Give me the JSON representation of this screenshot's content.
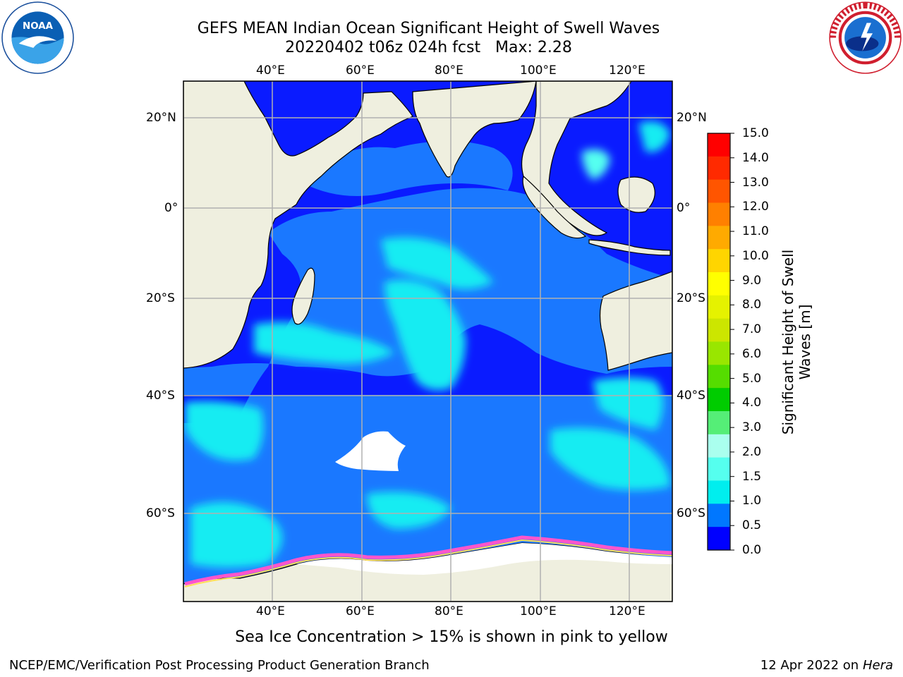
{
  "title": {
    "line1": "GEFS MEAN Indian Ocean Significant Height of Swell Waves",
    "line2": "20220402 t06z 024h fcst   Max: 2.28"
  },
  "map": {
    "lon_labels": [
      "40°E",
      "60°E",
      "80°E",
      "100°E",
      "120°E"
    ],
    "lat_labels": [
      "20°N",
      "0°",
      "20°S",
      "40°S",
      "60°S"
    ],
    "colors": {
      "land": "#efefdf",
      "coast": "#000000",
      "grid": "#b0b0b0",
      "ice_edge": "#ff55cc"
    }
  },
  "colorbar": {
    "title_line1": "Significant Height of Swell",
    "title_line2": "Waves [m]",
    "labels": [
      "15.0",
      "14.0",
      "13.0",
      "12.0",
      "11.0",
      "10.0",
      "9.0",
      "8.0",
      "7.0",
      "6.0",
      "5.0",
      "4.0",
      "3.0",
      "2.0",
      "1.5",
      "1.0",
      "0.5",
      "0.0"
    ],
    "colors": [
      "#ff0000",
      "#ff2a00",
      "#ff5500",
      "#ff8000",
      "#ffaa00",
      "#ffd500",
      "#ffff00",
      "#e5f200",
      "#cce600",
      "#99e600",
      "#55dd00",
      "#00cc00",
      "#55ee77",
      "#aaffee",
      "#55ffee",
      "#00eeee",
      "#0077ff",
      "#0000ff"
    ]
  },
  "footer": {
    "note": "Sea Ice Concentration > 15% is shown in pink to yellow",
    "left": "NCEP/EMC/Verification Post Processing Product Generation Branch",
    "right_prefix": "12 Apr 2022 on ",
    "right_machine": "Hera"
  }
}
